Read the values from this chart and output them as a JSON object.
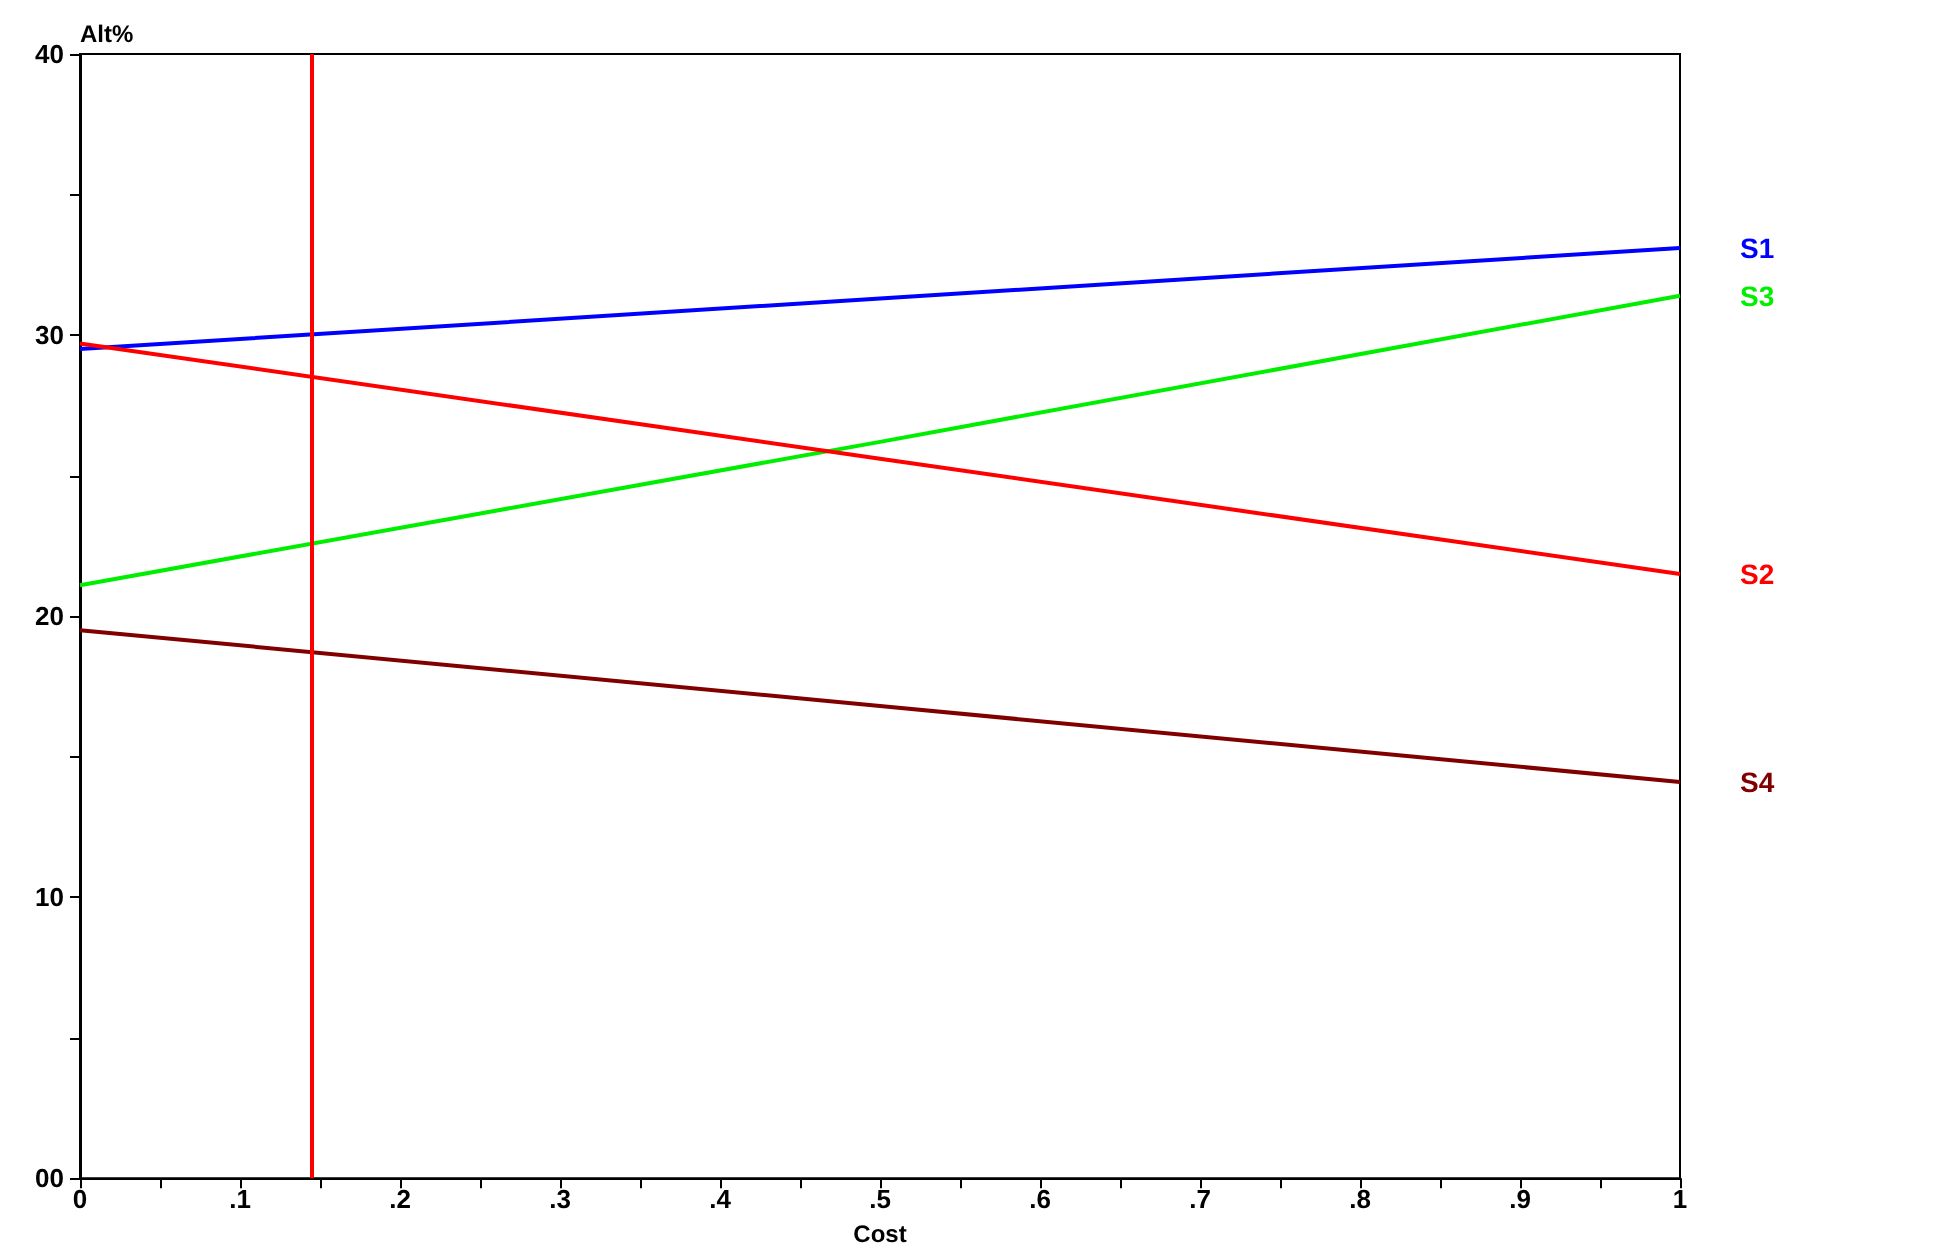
{
  "chart_data": {
    "type": "line",
    "xlabel": "Cost",
    "ylabel": "Alt%",
    "x": [
      0,
      0.5,
      1
    ],
    "series": [
      {
        "name": "S1",
        "color": "#0000ff",
        "values": [
          29.5,
          31.3,
          33.1
        ]
      },
      {
        "name": "S3",
        "color": "#00ee00",
        "values": [
          21.1,
          26.2,
          31.4
        ]
      },
      {
        "name": "S2",
        "color": "#ff0000",
        "values": [
          29.7,
          25.6,
          21.5
        ]
      },
      {
        "name": "S4",
        "color": "#800000",
        "values": [
          19.5,
          16.8,
          14.1
        ]
      }
    ],
    "xlim": [
      0,
      1
    ],
    "xticks": [
      {
        "value": 0,
        "label": "0"
      },
      {
        "value": 0.05,
        "label": null
      },
      {
        "value": 0.1,
        "label": ".1"
      },
      {
        "value": 0.15,
        "label": null
      },
      {
        "value": 0.2,
        "label": ".2"
      },
      {
        "value": 0.25,
        "label": null
      },
      {
        "value": 0.3,
        "label": ".3"
      },
      {
        "value": 0.35,
        "label": null
      },
      {
        "value": 0.4,
        "label": ".4"
      },
      {
        "value": 0.45,
        "label": null
      },
      {
        "value": 0.5,
        "label": ".5"
      },
      {
        "value": 0.55,
        "label": null
      },
      {
        "value": 0.6,
        "label": ".6"
      },
      {
        "value": 0.65,
        "label": null
      },
      {
        "value": 0.7,
        "label": ".7"
      },
      {
        "value": 0.75,
        "label": null
      },
      {
        "value": 0.8,
        "label": ".8"
      },
      {
        "value": 0.85,
        "label": null
      },
      {
        "value": 0.9,
        "label": ".9"
      },
      {
        "value": 0.95,
        "label": null
      },
      {
        "value": 1,
        "label": "1"
      }
    ],
    "ylim": [
      0,
      40
    ],
    "yticks": [
      {
        "value": 0,
        "label": "00"
      },
      {
        "value": 5,
        "label": null
      },
      10,
      {
        "value": 15,
        "label": null
      },
      20,
      {
        "value": 25,
        "label": null
      },
      30,
      {
        "value": 35,
        "label": null
      },
      40
    ],
    "ref_lines": [
      {
        "axis": "x",
        "value": 0.145,
        "color": "#ff0000"
      }
    ],
    "legend": false,
    "grid": false,
    "marker": "none",
    "line_style": "solid"
  }
}
